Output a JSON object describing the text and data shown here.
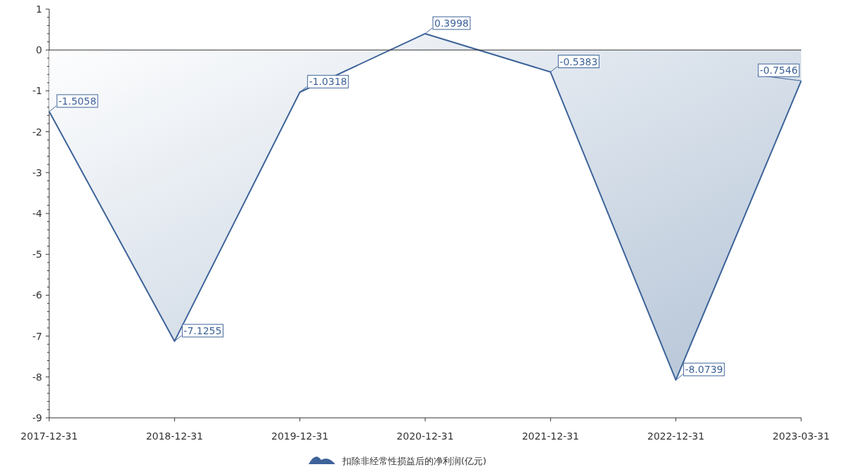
{
  "chart_data": {
    "type": "area",
    "categories": [
      "2017-12-31",
      "2018-12-31",
      "2019-12-31",
      "2020-12-31",
      "2021-12-31",
      "2022-12-31",
      "2023-03-31"
    ],
    "series": [
      {
        "name": "扣除非经常性损益后的净利润(亿元)",
        "color": "#3d6399",
        "values": [
          -1.5058,
          -7.1255,
          -1.0318,
          0.3998,
          -0.5383,
          -8.0739,
          -0.7546
        ]
      }
    ],
    "ylim": [
      -9,
      1
    ],
    "yticks": [
      -9,
      -8,
      -7,
      -6,
      -5,
      -4,
      -3,
      -2,
      -1,
      0,
      1
    ],
    "ref_lines": [
      {
        "axis": "y",
        "value": 0,
        "color": "#333333"
      }
    ],
    "data_labels": true,
    "grid": false,
    "legend": "bottom"
  }
}
